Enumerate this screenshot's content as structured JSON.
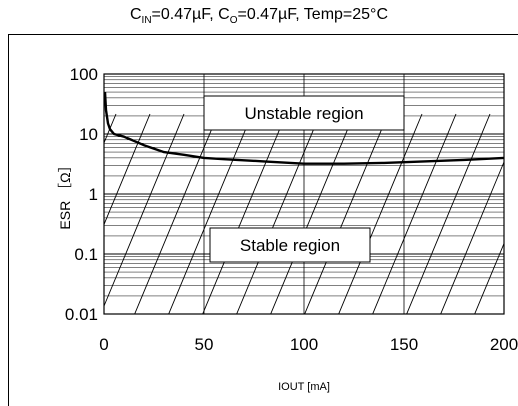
{
  "title": {
    "cin_label": "C",
    "cin_sub": "IN",
    "cin_value": "=0.47µF, ",
    "co_label": "C",
    "co_sub": "O",
    "co_value": "=0.47µF, Temp=25°C"
  },
  "chart_data": {
    "type": "line",
    "xlabel": "IOUT [mA]",
    "ylabel": "ESR ［Ω］",
    "xlim": [
      0,
      200
    ],
    "ylim": [
      0.01,
      100
    ],
    "yscale": "log",
    "x_ticks": [
      "0",
      "50",
      "100",
      "150",
      "200"
    ],
    "y_ticks": [
      "0.01",
      "0.1",
      "1",
      "10",
      "100"
    ],
    "grid": true,
    "series": [
      {
        "x": [
          0.5,
          1,
          2,
          3,
          5,
          10,
          20,
          30,
          40,
          50,
          60,
          80,
          100,
          120,
          140,
          160,
          180,
          200
        ],
        "y": [
          50,
          25,
          15,
          12,
          10,
          9,
          6.5,
          5.0,
          4.5,
          4.0,
          3.8,
          3.5,
          3.2,
          3.2,
          3.3,
          3.5,
          3.7,
          4.0
        ]
      }
    ],
    "annotations": [
      "Unstable region",
      "Stable region"
    ]
  }
}
